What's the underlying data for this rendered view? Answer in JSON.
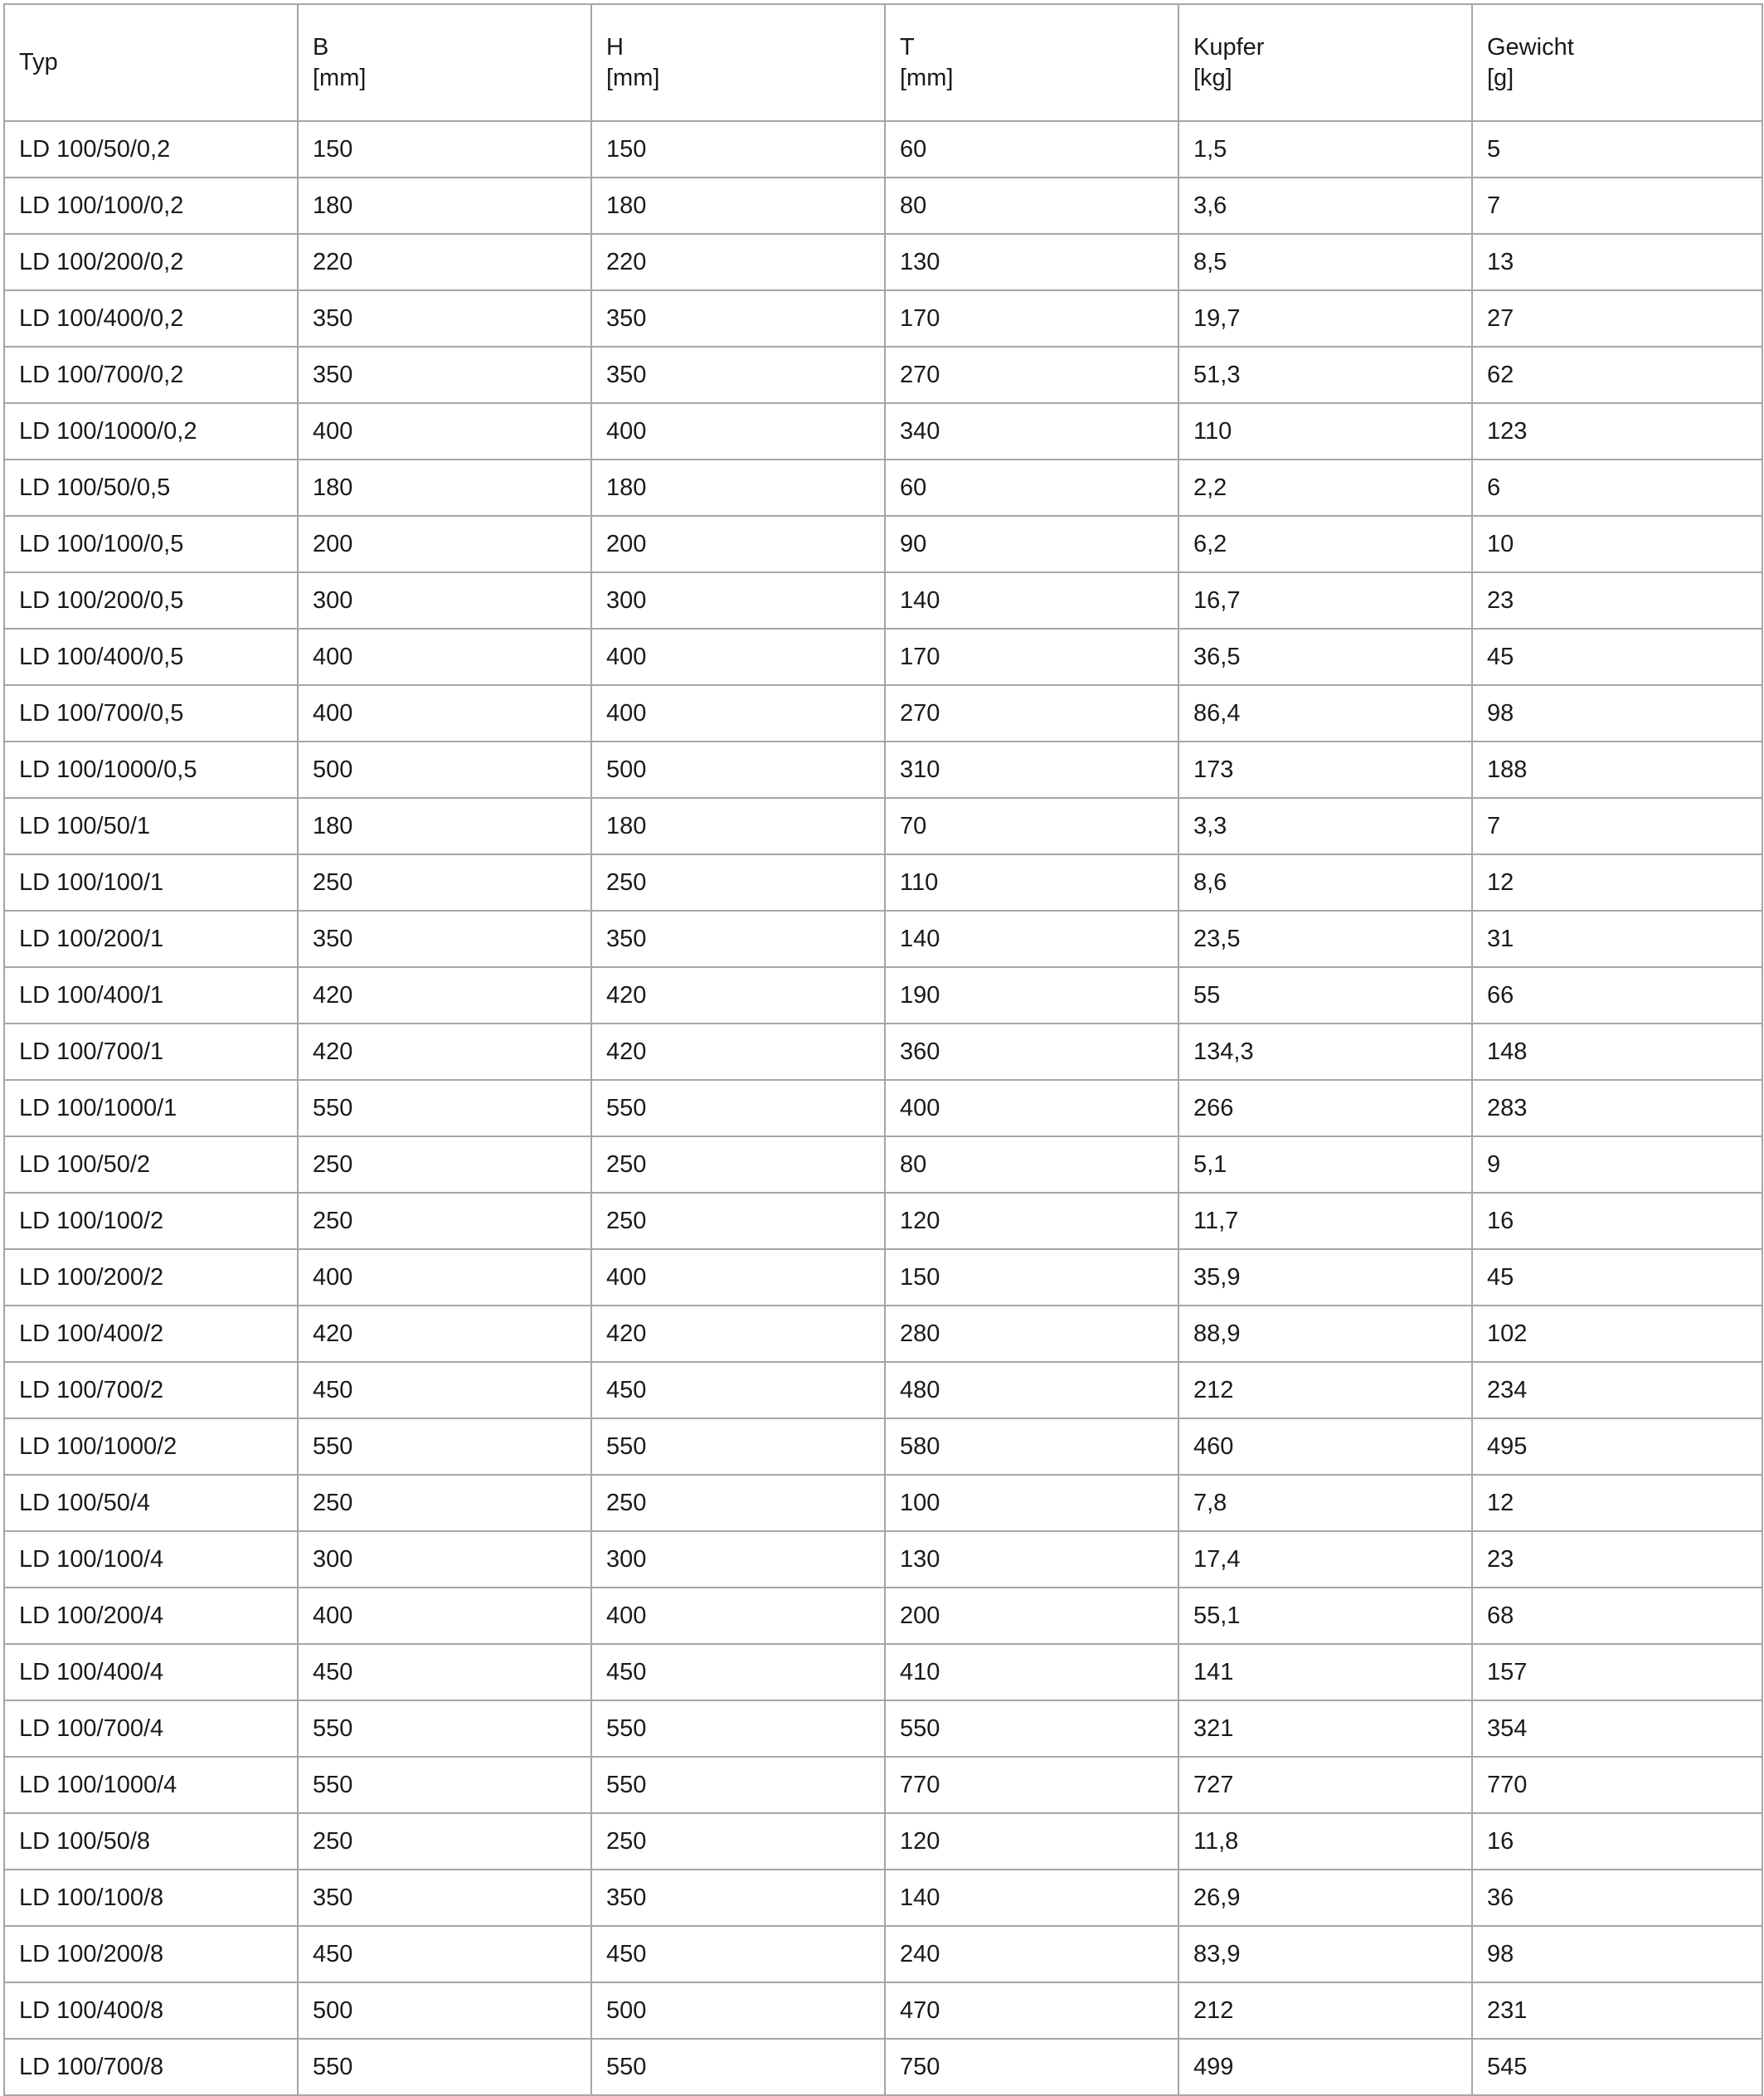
{
  "table": {
    "headers": [
      {
        "name": "Typ",
        "unit": ""
      },
      {
        "name": "B",
        "unit": "[mm]"
      },
      {
        "name": "H",
        "unit": "[mm]"
      },
      {
        "name": "T",
        "unit": "[mm]"
      },
      {
        "name": "Kupfer",
        "unit": "[kg]"
      },
      {
        "name": "Gewicht",
        "unit": "[g]"
      }
    ],
    "rows": [
      [
        "LD 100/50/0,2",
        "150",
        "150",
        "60",
        "1,5",
        "5"
      ],
      [
        "LD 100/100/0,2",
        "180",
        "180",
        "80",
        "3,6",
        "7"
      ],
      [
        "LD 100/200/0,2",
        "220",
        "220",
        "130",
        "8,5",
        "13"
      ],
      [
        "LD 100/400/0,2",
        "350",
        "350",
        "170",
        "19,7",
        "27"
      ],
      [
        "LD 100/700/0,2",
        "350",
        "350",
        "270",
        "51,3",
        "62"
      ],
      [
        "LD 100/1000/0,2",
        "400",
        "400",
        "340",
        "110",
        "123"
      ],
      [
        "LD 100/50/0,5",
        "180",
        "180",
        "60",
        "2,2",
        "6"
      ],
      [
        "LD 100/100/0,5",
        "200",
        "200",
        "90",
        "6,2",
        "10"
      ],
      [
        "LD 100/200/0,5",
        "300",
        "300",
        "140",
        "16,7",
        "23"
      ],
      [
        "LD 100/400/0,5",
        "400",
        "400",
        "170",
        "36,5",
        "45"
      ],
      [
        "LD 100/700/0,5",
        "400",
        "400",
        "270",
        "86,4",
        "98"
      ],
      [
        "LD 100/1000/0,5",
        "500",
        "500",
        "310",
        "173",
        "188"
      ],
      [
        "LD 100/50/1",
        "180",
        "180",
        "70",
        "3,3",
        "7"
      ],
      [
        "LD 100/100/1",
        "250",
        "250",
        "110",
        "8,6",
        "12"
      ],
      [
        "LD 100/200/1",
        "350",
        "350",
        "140",
        "23,5",
        "31"
      ],
      [
        "LD 100/400/1",
        "420",
        "420",
        "190",
        "55",
        "66"
      ],
      [
        "LD 100/700/1",
        "420",
        "420",
        "360",
        "134,3",
        "148"
      ],
      [
        "LD 100/1000/1",
        "550",
        "550",
        "400",
        "266",
        "283"
      ],
      [
        "LD 100/50/2",
        "250",
        "250",
        "80",
        "5,1",
        "9"
      ],
      [
        "LD 100/100/2",
        "250",
        "250",
        "120",
        "11,7",
        "16"
      ],
      [
        "LD 100/200/2",
        "400",
        "400",
        "150",
        "35,9",
        "45"
      ],
      [
        "LD 100/400/2",
        "420",
        "420",
        "280",
        "88,9",
        "102"
      ],
      [
        "LD 100/700/2",
        "450",
        "450",
        "480",
        "212",
        "234"
      ],
      [
        "LD 100/1000/2",
        "550",
        "550",
        "580",
        "460",
        "495"
      ],
      [
        "LD 100/50/4",
        "250",
        "250",
        "100",
        "7,8",
        "12"
      ],
      [
        "LD 100/100/4",
        "300",
        "300",
        "130",
        "17,4",
        "23"
      ],
      [
        "LD 100/200/4",
        "400",
        "400",
        "200",
        "55,1",
        "68"
      ],
      [
        "LD 100/400/4",
        "450",
        "450",
        "410",
        "141",
        "157"
      ],
      [
        "LD 100/700/4",
        "550",
        "550",
        "550",
        "321",
        "354"
      ],
      [
        "LD 100/1000/4",
        "550",
        "550",
        "770",
        "727",
        "770"
      ],
      [
        "LD 100/50/8",
        "250",
        "250",
        "120",
        "11,8",
        "16"
      ],
      [
        "LD 100/100/8",
        "350",
        "350",
        "140",
        "26,9",
        "36"
      ],
      [
        "LD 100/200/8",
        "450",
        "450",
        "240",
        "83,9",
        "98"
      ],
      [
        "LD 100/400/8",
        "500",
        "500",
        "470",
        "212",
        "231"
      ],
      [
        "LD 100/700/8",
        "550",
        "550",
        "750",
        "499",
        "545"
      ]
    ]
  },
  "colors": {
    "border": "#a6a6a6",
    "text": "#1a1a1a",
    "background": "#ffffff"
  }
}
